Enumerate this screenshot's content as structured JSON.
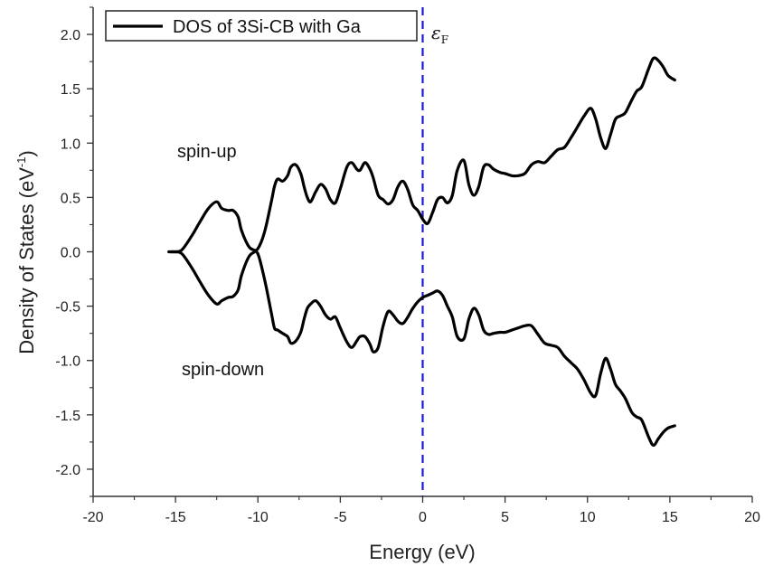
{
  "chart_data": {
    "type": "line",
    "xlabel": "Energy (eV)",
    "ylabel_main": "Density of States (eV",
    "ylabel_sup": "-1",
    "ylabel_tail": ")",
    "xlim": [
      -20,
      20
    ],
    "ylim": [
      -2.25,
      2.25
    ],
    "x_ticks": [
      "-20",
      "-15",
      "-10",
      "-5",
      "0",
      "5",
      "10",
      "15",
      "20"
    ],
    "x_tick_values": [
      -20,
      -15,
      -10,
      -5,
      0,
      5,
      10,
      15,
      20
    ],
    "y_ticks": [
      "2.0",
      "1.5",
      "1.0",
      "0.5",
      "0.0",
      "-0.5",
      "-1.0",
      "-1.5",
      "-2.0"
    ],
    "y_tick_values": [
      2.0,
      1.5,
      1.0,
      0.5,
      0.0,
      -0.5,
      -1.0,
      -1.5,
      -2.0
    ],
    "legend": "DOS of 3Si-CB with Ga",
    "fermi_label": "ε",
    "fermi_sub": "F",
    "fermi_x": 0,
    "line_color": "#000000",
    "fermi_color": "#1a1adb",
    "annotations": {
      "spin_up": "spin-up",
      "spin_down": "spin-down"
    },
    "series": [
      {
        "name": "DOS of 3Si-CB with Ga",
        "x": [
          -15.4,
          -15.0,
          -14.6,
          -14.0,
          -13.5,
          -13.0,
          -12.5,
          -12.2,
          -11.8,
          -11.5,
          -11.2,
          -11.0,
          -10.6,
          -10.3,
          -10.0,
          -9.6,
          -9.2,
          -9.0,
          -8.8,
          -8.5,
          -8.2,
          -8.0,
          -7.7,
          -7.4,
          -7.2,
          -7.0,
          -6.8,
          -6.5,
          -6.2,
          -5.9,
          -5.6,
          -5.3,
          -5.0,
          -4.6,
          -4.3,
          -4.0,
          -3.8,
          -3.5,
          -3.2,
          -3.0,
          -2.7,
          -2.4,
          -2.1,
          -1.8,
          -1.5,
          -1.2,
          -0.9,
          -0.6,
          -0.3,
          0.0,
          0.3,
          0.6,
          0.9,
          1.2,
          1.5,
          1.8,
          2.1,
          2.5,
          2.8,
          3.1,
          3.4,
          3.7,
          4.0,
          4.3,
          4.7,
          5.0,
          5.4,
          5.8,
          6.2,
          6.6,
          7.0,
          7.4,
          7.8,
          8.2,
          8.6,
          9.0,
          9.4,
          9.8,
          10.2,
          10.5,
          10.8,
          11.1,
          11.4,
          11.7,
          12.0,
          12.3,
          12.7,
          13.0,
          13.3,
          13.7,
          14.0,
          14.3,
          14.6,
          14.9,
          15.3
        ],
        "y_up": [
          0.0,
          0.0,
          0.02,
          0.15,
          0.28,
          0.4,
          0.46,
          0.4,
          0.38,
          0.38,
          0.32,
          0.2,
          0.06,
          0.02,
          0.03,
          0.18,
          0.45,
          0.6,
          0.67,
          0.65,
          0.7,
          0.78,
          0.8,
          0.72,
          0.6,
          0.5,
          0.46,
          0.55,
          0.62,
          0.58,
          0.48,
          0.45,
          0.58,
          0.78,
          0.82,
          0.76,
          0.75,
          0.82,
          0.76,
          0.68,
          0.52,
          0.48,
          0.44,
          0.48,
          0.6,
          0.65,
          0.57,
          0.43,
          0.38,
          0.3,
          0.26,
          0.36,
          0.48,
          0.5,
          0.45,
          0.52,
          0.75,
          0.84,
          0.62,
          0.52,
          0.6,
          0.78,
          0.8,
          0.76,
          0.73,
          0.72,
          0.7,
          0.7,
          0.72,
          0.8,
          0.83,
          0.82,
          0.88,
          0.94,
          0.96,
          1.05,
          1.15,
          1.25,
          1.32,
          1.22,
          1.05,
          0.95,
          1.08,
          1.22,
          1.25,
          1.28,
          1.4,
          1.48,
          1.52,
          1.68,
          1.78,
          1.76,
          1.7,
          1.62,
          1.58
        ],
        "y_down": [
          0.0,
          0.0,
          -0.02,
          -0.15,
          -0.28,
          -0.4,
          -0.48,
          -0.45,
          -0.42,
          -0.41,
          -0.35,
          -0.22,
          -0.06,
          -0.01,
          -0.02,
          -0.25,
          -0.55,
          -0.7,
          -0.72,
          -0.75,
          -0.78,
          -0.84,
          -0.82,
          -0.74,
          -0.62,
          -0.52,
          -0.48,
          -0.45,
          -0.5,
          -0.58,
          -0.62,
          -0.6,
          -0.7,
          -0.83,
          -0.88,
          -0.82,
          -0.78,
          -0.78,
          -0.85,
          -0.92,
          -0.88,
          -0.68,
          -0.55,
          -0.58,
          -0.64,
          -0.66,
          -0.6,
          -0.52,
          -0.46,
          -0.42,
          -0.4,
          -0.38,
          -0.36,
          -0.4,
          -0.5,
          -0.6,
          -0.78,
          -0.8,
          -0.62,
          -0.52,
          -0.58,
          -0.72,
          -0.76,
          -0.75,
          -0.74,
          -0.74,
          -0.72,
          -0.7,
          -0.68,
          -0.68,
          -0.76,
          -0.84,
          -0.86,
          -0.88,
          -0.96,
          -1.02,
          -1.08,
          -1.18,
          -1.3,
          -1.32,
          -1.12,
          -0.98,
          -1.08,
          -1.22,
          -1.28,
          -1.35,
          -1.48,
          -1.52,
          -1.55,
          -1.7,
          -1.78,
          -1.72,
          -1.66,
          -1.62,
          -1.6
        ]
      }
    ]
  }
}
